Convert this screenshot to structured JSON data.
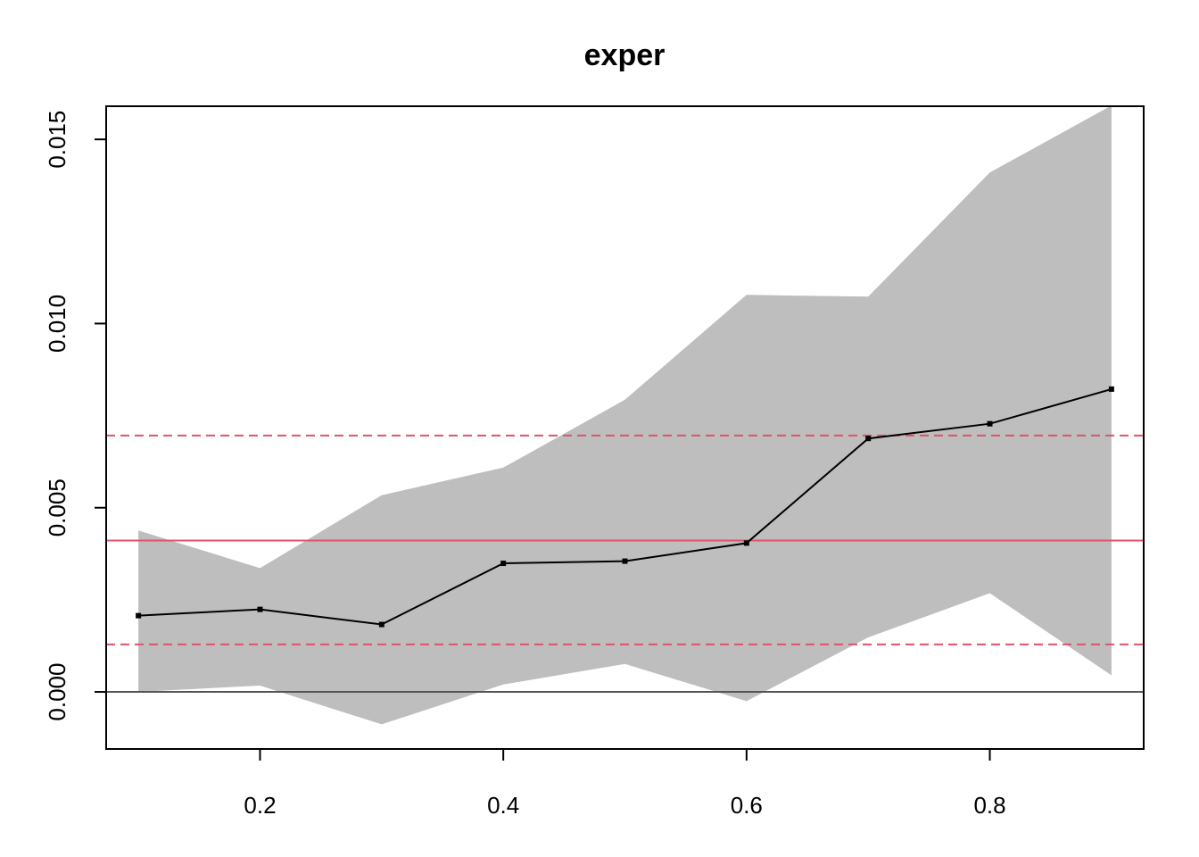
{
  "chart_data": {
    "type": "line",
    "title": "exper",
    "xlabel": "",
    "ylabel": "",
    "x": [
      0.1,
      0.2,
      0.3,
      0.4,
      0.5,
      0.6,
      0.7,
      0.8,
      0.9
    ],
    "series": [
      {
        "values": [
          0.00207,
          0.00224,
          0.00183,
          0.00349,
          0.00355,
          0.00404,
          0.00688,
          0.00728,
          0.00822
        ],
        "color": "#000000"
      }
    ],
    "band": {
      "lower": [
        0.0,
        0.00017,
        -0.00088,
        0.0002,
        0.00076,
        -0.00025,
        0.00148,
        0.00268,
        0.00045
      ],
      "upper": [
        0.00438,
        0.00336,
        0.00534,
        0.00609,
        0.00793,
        0.01078,
        0.01073,
        0.0141,
        0.01592
      ],
      "color": "#bebebe"
    },
    "reference_lines": [
      {
        "y": 0.00411,
        "style": "solid",
        "color": "#df536b"
      },
      {
        "y": 0.00696,
        "style": "dashed",
        "color": "#df536b"
      },
      {
        "y": 0.00129,
        "style": "dashed",
        "color": "#df536b"
      },
      {
        "y": 0.0,
        "style": "solid",
        "color": "#555555"
      }
    ],
    "xlim": [
      0.0735,
      0.9265
    ],
    "ylim": [
      -0.00155,
      0.0159
    ],
    "xticks": [
      0.2,
      0.4,
      0.6,
      0.8
    ],
    "xtick_labels": [
      "0.2",
      "0.4",
      "0.6",
      "0.8"
    ],
    "yticks": [
      0.0,
      0.005,
      0.01,
      0.015
    ],
    "ytick_labels": [
      "0.000",
      "0.005",
      "0.010",
      "0.015"
    ],
    "grid": false,
    "legend": "none"
  }
}
